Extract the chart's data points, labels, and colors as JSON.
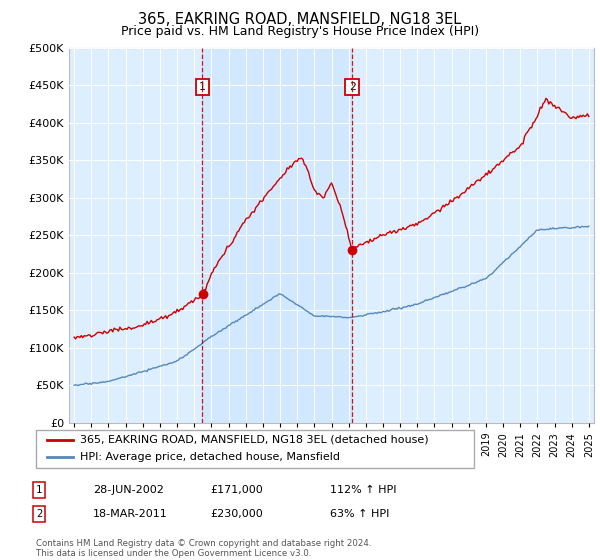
{
  "title": "365, EAKRING ROAD, MANSFIELD, NG18 3EL",
  "subtitle": "Price paid vs. HM Land Registry's House Price Index (HPI)",
  "title_fontsize": 10.5,
  "subtitle_fontsize": 9,
  "background_color": "#ffffff",
  "plot_bg_color": "#ddeeff",
  "shade_color": "#d0e8ff",
  "ylim": [
    0,
    500000
  ],
  "yticks": [
    0,
    50000,
    100000,
    150000,
    200000,
    250000,
    300000,
    350000,
    400000,
    450000,
    500000
  ],
  "sale1_date_num": 2002.48,
  "sale1_price": 171000,
  "sale1_label": "1",
  "sale2_date_num": 2011.2,
  "sale2_price": 230000,
  "sale2_label": "2",
  "red_color": "#cc0000",
  "blue_color": "#5588bb",
  "dashed_color": "#cc0000",
  "legend_entries": [
    "365, EAKRING ROAD, MANSFIELD, NG18 3EL (detached house)",
    "HPI: Average price, detached house, Mansfield"
  ],
  "table_rows": [
    {
      "num": "1",
      "date": "28-JUN-2002",
      "price": "£171,000",
      "pct": "112% ↑ HPI"
    },
    {
      "num": "2",
      "date": "18-MAR-2011",
      "price": "£230,000",
      "pct": "63% ↑ HPI"
    }
  ],
  "footnote": "Contains HM Land Registry data © Crown copyright and database right 2024.\nThis data is licensed under the Open Government Licence v3.0."
}
